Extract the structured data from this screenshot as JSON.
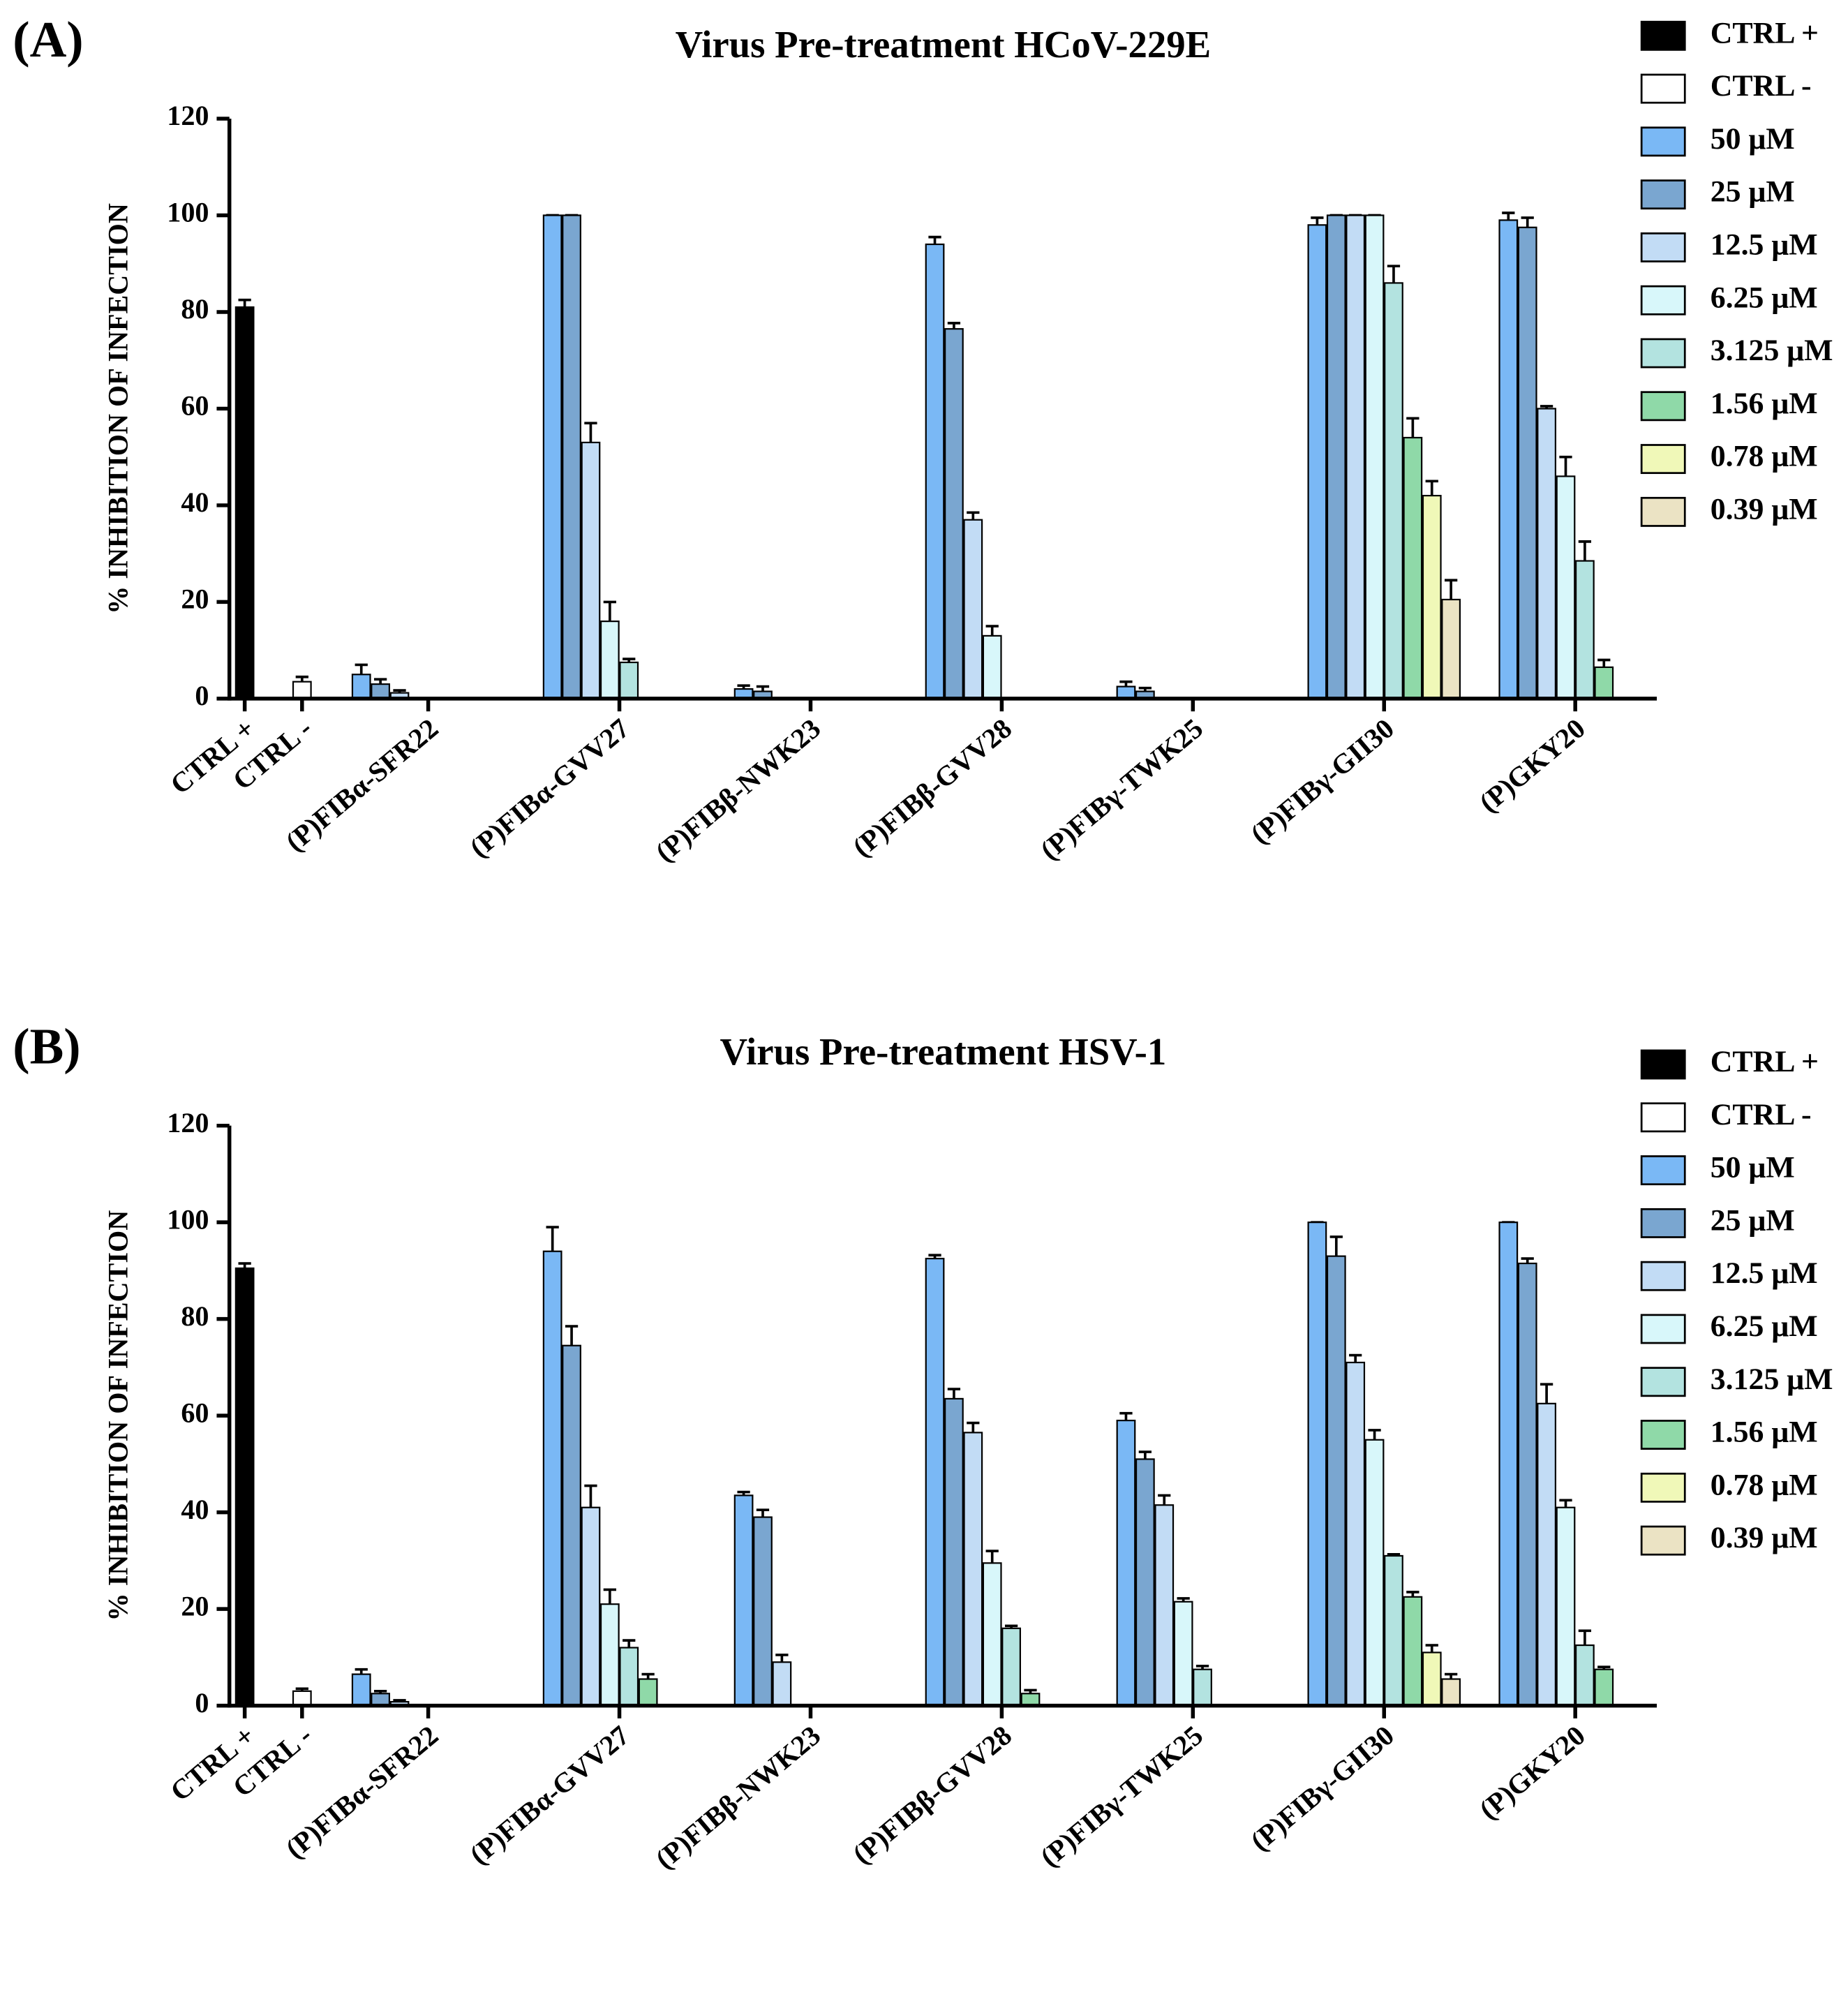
{
  "chart_data": [
    {
      "type": "bar",
      "panel": "(A)",
      "title": "Virus Pre-treatment HCoV-229E",
      "y_label": "% INHIBITION OF INFECTION",
      "categories": [
        "CTRL +",
        "CTRL -",
        "(P)FIBα-SFR22",
        "(P)FIBα-GVV27",
        "(P)FIBβ-NWK23",
        "(P)FIBβ-GVV28",
        "(P)FIBγ-TWK25",
        "(P)FIBγ-GII30",
        "(P)GKY20"
      ],
      "ylim": [
        0,
        120
      ],
      "yticks": [
        0,
        20,
        40,
        60,
        80,
        100,
        120
      ],
      "legend": "right",
      "series": [
        {
          "name": "CTRL +",
          "color": "#000000",
          "values": [
            81,
            null,
            null,
            null,
            null,
            null,
            null,
            null,
            null
          ],
          "errors": [
            1.5,
            null,
            null,
            null,
            null,
            null,
            null,
            null,
            null
          ]
        },
        {
          "name": "CTRL -",
          "color": "#ffffff",
          "values": [
            null,
            3.5,
            null,
            null,
            null,
            null,
            null,
            null,
            null
          ],
          "errors": [
            null,
            1,
            null,
            null,
            null,
            null,
            null,
            null,
            null
          ]
        },
        {
          "name": "50 μM",
          "color": "#7ab8f5",
          "values": [
            null,
            null,
            5,
            100,
            2,
            94,
            2.5,
            98,
            99
          ],
          "errors": [
            null,
            null,
            2,
            0,
            0.7,
            1.5,
            1,
            1.5,
            1.5
          ]
        },
        {
          "name": "25 μM",
          "color": "#7aa6d0",
          "values": [
            null,
            null,
            3,
            100,
            1.5,
            76.5,
            1.5,
            100,
            97.5
          ],
          "errors": [
            null,
            null,
            1,
            0,
            1,
            1.2,
            0.7,
            0,
            2
          ]
        },
        {
          "name": "12.5 μM",
          "color": "#c2dcf5",
          "values": [
            null,
            null,
            1.2,
            53,
            null,
            37,
            null,
            100,
            60
          ],
          "errors": [
            null,
            null,
            0.5,
            4,
            null,
            1.5,
            null,
            0,
            0.5
          ]
        },
        {
          "name": "6.25 μM",
          "color": "#d8f7fa",
          "values": [
            null,
            null,
            null,
            16,
            null,
            13,
            null,
            100,
            46
          ],
          "errors": [
            null,
            null,
            null,
            4,
            null,
            2,
            null,
            0,
            4
          ]
        },
        {
          "name": "3.125 μM",
          "color": "#b3e3e0",
          "values": [
            null,
            null,
            null,
            7.5,
            null,
            null,
            null,
            86,
            28.5
          ],
          "errors": [
            null,
            null,
            null,
            0.7,
            null,
            null,
            null,
            3.5,
            4
          ]
        },
        {
          "name": "1.56 μM",
          "color": "#8fd9a8",
          "values": [
            null,
            null,
            null,
            null,
            null,
            null,
            null,
            54,
            6.5
          ],
          "errors": [
            null,
            null,
            null,
            null,
            null,
            null,
            null,
            4,
            1.5
          ]
        },
        {
          "name": "0.78 μM",
          "color": "#f0f8b8",
          "values": [
            null,
            null,
            null,
            null,
            null,
            null,
            null,
            42,
            null
          ],
          "errors": [
            null,
            null,
            null,
            null,
            null,
            null,
            null,
            3,
            null
          ]
        },
        {
          "name": "0.39 μM",
          "color": "#ebe3c4",
          "values": [
            null,
            null,
            null,
            null,
            null,
            null,
            null,
            20.5,
            null
          ],
          "errors": [
            null,
            null,
            null,
            null,
            null,
            null,
            null,
            4,
            null
          ]
        }
      ]
    },
    {
      "type": "bar",
      "panel": "(B)",
      "title": "Virus Pre-treatment HSV-1",
      "y_label": "% INHIBITION OF INFECTION",
      "categories": [
        "CTRL +",
        "CTRL -",
        "(P)FIBα-SFR22",
        "(P)FIBα-GVV27",
        "(P)FIBβ-NWK23",
        "(P)FIBβ-GVV28",
        "(P)FIBγ-TWK25",
        "(P)FIBγ-GII30",
        "(P)GKY20"
      ],
      "ylim": [
        0,
        120
      ],
      "yticks": [
        0,
        20,
        40,
        60,
        80,
        100,
        120
      ],
      "legend": "right",
      "series": [
        {
          "name": "CTRL +",
          "color": "#000000",
          "values": [
            90.5,
            null,
            null,
            null,
            null,
            null,
            null,
            null,
            null
          ],
          "errors": [
            1,
            null,
            null,
            null,
            null,
            null,
            null,
            null,
            null
          ]
        },
        {
          "name": "CTRL -",
          "color": "#ffffff",
          "values": [
            null,
            3,
            null,
            null,
            null,
            null,
            null,
            null,
            null
          ],
          "errors": [
            null,
            0.5,
            null,
            null,
            null,
            null,
            null,
            null,
            null
          ]
        },
        {
          "name": "50 μM",
          "color": "#7ab8f5",
          "values": [
            null,
            null,
            6.5,
            94,
            43.5,
            92.5,
            59,
            100,
            100
          ],
          "errors": [
            null,
            null,
            1,
            5,
            0.7,
            0.7,
            1.5,
            0,
            0
          ]
        },
        {
          "name": "25 μM",
          "color": "#7aa6d0",
          "values": [
            null,
            null,
            2.5,
            74.5,
            39,
            63.5,
            51,
            93,
            91.5
          ],
          "errors": [
            null,
            null,
            0.5,
            4,
            1.5,
            2,
            1.5,
            4,
            1
          ]
        },
        {
          "name": "12.5 μM",
          "color": "#c2dcf5",
          "values": [
            null,
            null,
            0.8,
            41,
            9,
            56.5,
            41.5,
            71,
            62.5
          ],
          "errors": [
            null,
            null,
            0.3,
            4.5,
            1.5,
            2,
            2,
            1.5,
            4
          ]
        },
        {
          "name": "6.25 μM",
          "color": "#d8f7fa",
          "values": [
            null,
            null,
            null,
            21,
            null,
            29.5,
            21.5,
            55,
            41
          ],
          "errors": [
            null,
            null,
            null,
            3,
            null,
            2.5,
            0.7,
            2,
            1.5
          ]
        },
        {
          "name": "3.125 μM",
          "color": "#b3e3e0",
          "values": [
            null,
            null,
            null,
            12,
            null,
            16,
            7.5,
            31,
            12.5
          ],
          "errors": [
            null,
            null,
            null,
            1.5,
            null,
            0.5,
            0.7,
            0.3,
            3
          ]
        },
        {
          "name": "1.56 μM",
          "color": "#8fd9a8",
          "values": [
            null,
            null,
            null,
            5.5,
            null,
            2.5,
            null,
            22.5,
            7.5
          ],
          "errors": [
            null,
            null,
            null,
            1,
            null,
            0.7,
            null,
            1,
            0.5
          ]
        },
        {
          "name": "0.78 μM",
          "color": "#f0f8b8",
          "values": [
            null,
            null,
            null,
            null,
            null,
            null,
            null,
            11,
            null
          ],
          "errors": [
            null,
            null,
            null,
            null,
            null,
            null,
            null,
            1.5,
            null
          ]
        },
        {
          "name": "0.39 μM",
          "color": "#ebe3c4",
          "values": [
            null,
            null,
            null,
            null,
            null,
            null,
            null,
            5.5,
            null
          ],
          "errors": [
            null,
            null,
            null,
            null,
            null,
            null,
            null,
            1,
            null
          ]
        }
      ]
    }
  ]
}
